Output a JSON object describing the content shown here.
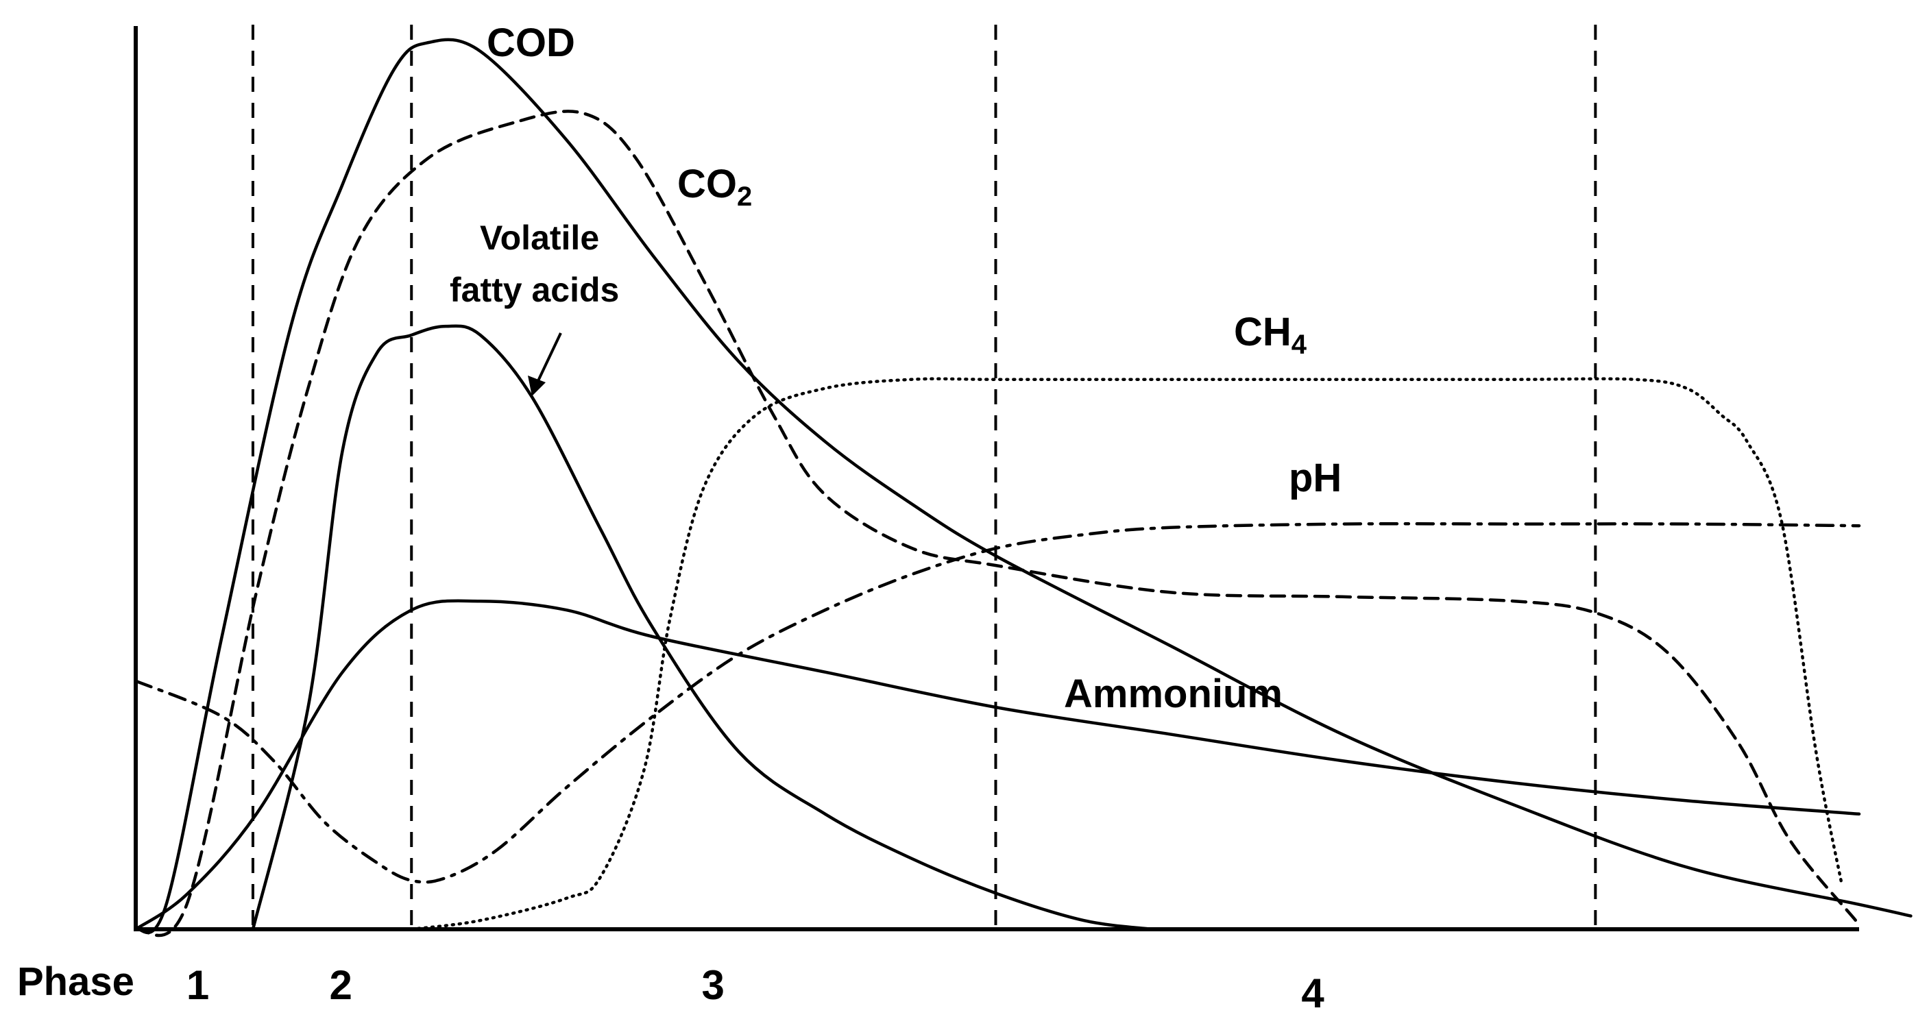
{
  "chart_data": {
    "type": "line",
    "title": "",
    "xlabel": "",
    "ylabel": "",
    "xlim": [
      0,
      10
    ],
    "ylim": [
      0,
      10
    ],
    "grid": false,
    "legend": "none",
    "axis_label_prefix": "Phase",
    "phase_boundaries": [
      0.68,
      1.6,
      4.99,
      8.47
    ],
    "phases": [
      {
        "label": "1",
        "center": 0.36
      },
      {
        "label": "2",
        "center": 1.19
      },
      {
        "label": "3",
        "center": 3.35
      },
      {
        "label": "4",
        "center": 6.83
      }
    ],
    "series": [
      {
        "name": "COD",
        "label": "COD",
        "style": "solid",
        "x": [
          0,
          0.18,
          0.5,
          0.9,
          1.2,
          1.5,
          1.7,
          2.0,
          2.5,
          3.0,
          3.5,
          4.0,
          4.5,
          5.0,
          6.0,
          7.0,
          8.0,
          9.0,
          10.0,
          10.3
        ],
        "y": [
          0,
          0.3,
          3.3,
          6.8,
          8.4,
          9.7,
          10.0,
          9.9,
          8.9,
          7.6,
          6.4,
          5.5,
          4.8,
          4.2,
          3.2,
          2.2,
          1.4,
          0.7,
          0.28,
          0.15
        ]
      },
      {
        "name": "CO2",
        "label": "CO",
        "label_sub": "2",
        "style": "dashed",
        "x": [
          0,
          0.3,
          0.7,
          1.0,
          1.3,
          1.7,
          2.2,
          2.6,
          2.9,
          3.3,
          3.7,
          4.0,
          4.5,
          5.0,
          6.0,
          7.0,
          8.0,
          8.5,
          8.9,
          9.3,
          9.6,
          9.98
        ],
        "y": [
          0,
          0.3,
          3.8,
          6.1,
          7.8,
          8.7,
          9.1,
          9.2,
          8.7,
          7.3,
          5.8,
          4.9,
          4.3,
          4.1,
          3.8,
          3.75,
          3.7,
          3.55,
          3.1,
          2.1,
          1.0,
          0.1
        ]
      },
      {
        "name": "Volatile fatty acids",
        "label_lines": [
          "Volatile",
          "fatty acids"
        ],
        "style": "solid",
        "x": [
          0.68,
          1.0,
          1.2,
          1.4,
          1.6,
          1.8,
          2.0,
          2.3,
          2.7,
          3.0,
          3.5,
          4.0,
          4.5,
          5.0,
          5.5,
          5.9
        ],
        "y": [
          0,
          2.5,
          5.4,
          6.5,
          6.7,
          6.8,
          6.7,
          6.0,
          4.5,
          3.4,
          2.0,
          1.3,
          0.8,
          0.4,
          0.1,
          0
        ]
      },
      {
        "name": "Ammonium",
        "label": "Ammonium",
        "style": "solid",
        "x": [
          0,
          0.3,
          0.7,
          1.2,
          1.6,
          2.0,
          2.5,
          3.0,
          4.0,
          5.0,
          6.0,
          7.0,
          8.0,
          9.0,
          10.0
        ],
        "y": [
          0,
          0.4,
          1.3,
          2.9,
          3.6,
          3.7,
          3.6,
          3.3,
          2.9,
          2.5,
          2.2,
          1.9,
          1.65,
          1.45,
          1.3
        ]
      },
      {
        "name": "pH",
        "label": "pH",
        "style": "dashdot",
        "x": [
          0,
          0.5,
          0.8,
          1.1,
          1.4,
          1.6,
          1.8,
          2.1,
          2.5,
          3.0,
          3.5,
          4.0,
          4.5,
          5.0,
          5.5,
          6.0,
          7.0,
          8.0,
          9.0,
          10.0
        ],
        "y": [
          2.8,
          2.4,
          1.9,
          1.2,
          0.75,
          0.55,
          0.58,
          0.9,
          1.6,
          2.4,
          3.1,
          3.6,
          4.0,
          4.3,
          4.45,
          4.53,
          4.57,
          4.57,
          4.57,
          4.55
        ]
      },
      {
        "name": "CH4",
        "label": "CH",
        "label_sub": "4",
        "style": "dotted",
        "x": [
          1.6,
          2.0,
          2.5,
          2.7,
          2.95,
          3.1,
          3.3,
          3.6,
          4.0,
          4.5,
          5.0,
          6.0,
          7.0,
          8.0,
          8.7,
          9.0,
          9.2,
          9.35,
          9.55,
          9.75,
          9.9
        ],
        "y": [
          0,
          0.1,
          0.35,
          0.6,
          1.8,
          3.5,
          5.0,
          5.8,
          6.1,
          6.2,
          6.2,
          6.2,
          6.2,
          6.2,
          6.2,
          6.1,
          5.8,
          5.5,
          4.6,
          2.0,
          0.5
        ]
      }
    ]
  }
}
